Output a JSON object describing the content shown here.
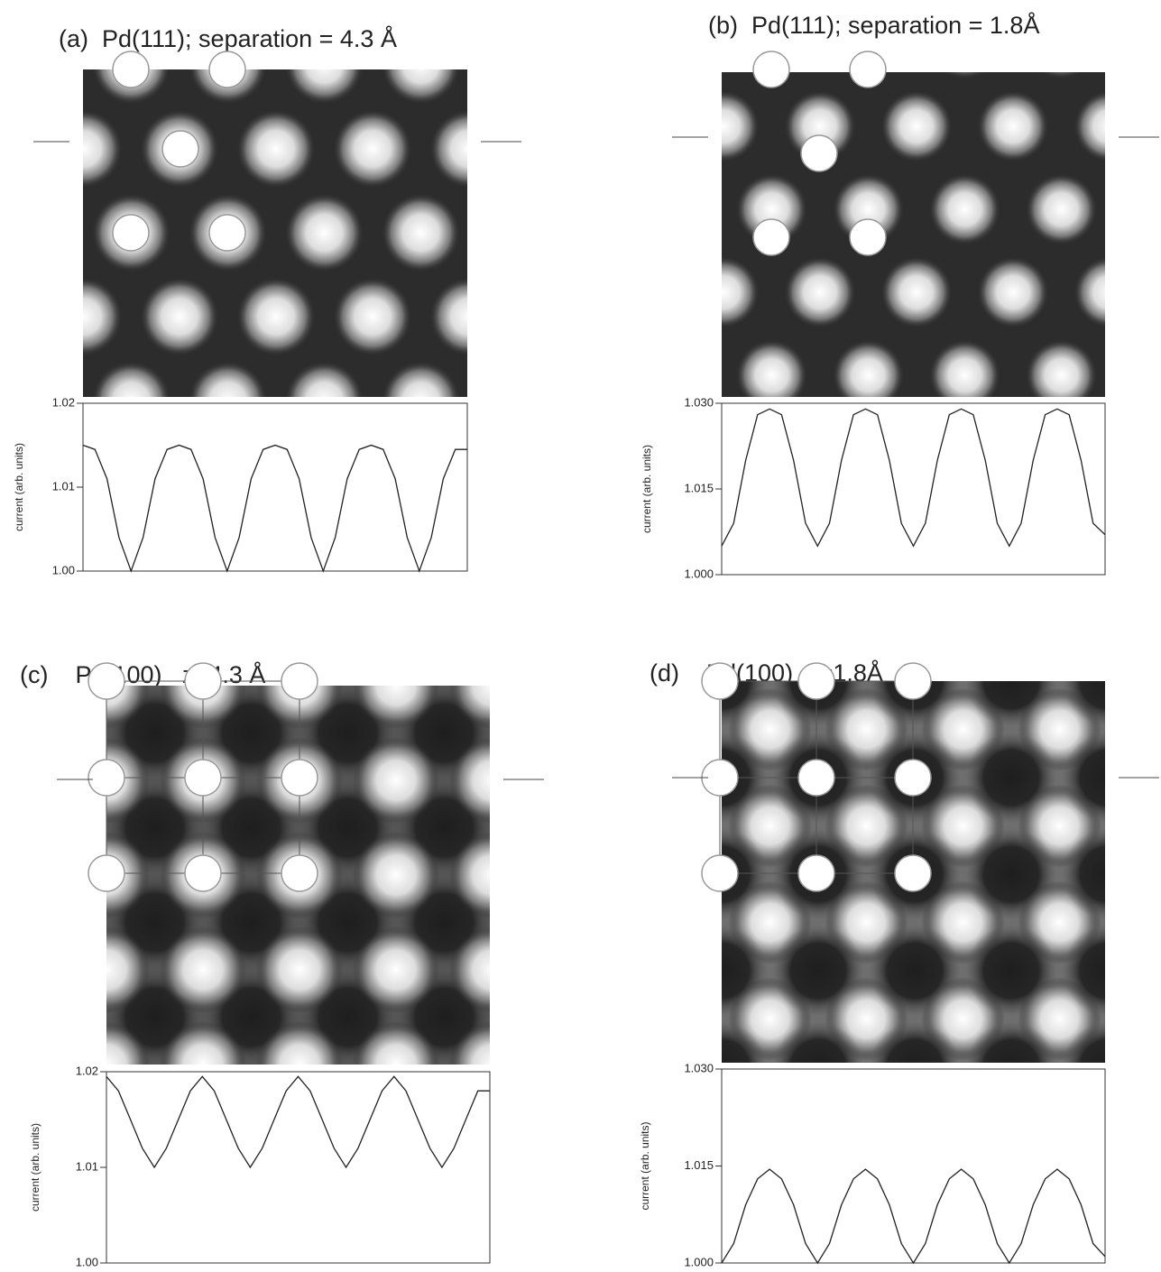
{
  "chart_data": [
    {
      "type": "line",
      "title": "(a)  Pd(111); separation = 4.3 Å",
      "y_label": "current (arb. units)",
      "ylim": [
        1.0,
        1.02
      ],
      "yticks": [
        {
          "value": 1.0,
          "label": "1.00"
        },
        1.01,
        1.02
      ],
      "color": "#222222",
      "values": [
        1.015,
        1.0145,
        1.011,
        1.004,
        1.0,
        1.004,
        1.011,
        1.0145,
        1.015,
        1.0145,
        1.011,
        1.004,
        1.0,
        1.004,
        1.011,
        1.0145,
        1.015,
        1.0145,
        1.011,
        1.004,
        1.0,
        1.004,
        1.011,
        1.0145,
        1.015,
        1.0145,
        1.011,
        1.004,
        1.0,
        1.004,
        1.011,
        1.0145,
        1.0145
      ]
    },
    {
      "type": "line",
      "title": "(b)  Pd(111); separation = 1.8Å",
      "y_label": "current (arb. units)",
      "ylim": [
        1.0,
        1.03
      ],
      "yticks": [
        {
          "value": 1.0,
          "label": "1.000"
        },
        1.015,
        {
          "value": 1.03,
          "label": "1.030"
        }
      ],
      "color": "#222222",
      "values": [
        1.005,
        1.009,
        1.02,
        1.028,
        1.029,
        1.028,
        1.02,
        1.009,
        1.005,
        1.009,
        1.02,
        1.028,
        1.029,
        1.028,
        1.02,
        1.009,
        1.005,
        1.009,
        1.02,
        1.028,
        1.029,
        1.028,
        1.02,
        1.009,
        1.005,
        1.009,
        1.02,
        1.028,
        1.029,
        1.028,
        1.02,
        1.009,
        1.007
      ]
    },
    {
      "type": "line",
      "title": "(c)    Pd(100)   z=4.3 Å",
      "y_label": "current (arb. units)",
      "ylim": [
        1.0,
        1.02
      ],
      "yticks": [
        {
          "value": 1.0,
          "label": "1.00"
        },
        1.01,
        1.02
      ],
      "color": "#222222",
      "values": [
        1.0195,
        1.018,
        1.015,
        1.012,
        1.01,
        1.012,
        1.015,
        1.018,
        1.0195,
        1.018,
        1.015,
        1.012,
        1.01,
        1.012,
        1.015,
        1.018,
        1.0195,
        1.018,
        1.015,
        1.012,
        1.01,
        1.012,
        1.015,
        1.018,
        1.0195,
        1.018,
        1.015,
        1.012,
        1.01,
        1.012,
        1.015,
        1.018,
        1.018
      ]
    },
    {
      "type": "line",
      "title": "(d)    Pd(100)  z=1.8Å",
      "y_label": "current (arb. units)",
      "ylim": [
        1.0,
        1.03
      ],
      "yticks": [
        {
          "value": 1.0,
          "label": "1.000"
        },
        1.015,
        {
          "value": 1.03,
          "label": "1.030"
        }
      ],
      "color": "#222222",
      "values": [
        1.0,
        1.003,
        1.009,
        1.013,
        1.0145,
        1.013,
        1.009,
        1.003,
        1.0,
        1.003,
        1.009,
        1.013,
        1.0145,
        1.013,
        1.009,
        1.003,
        1.0,
        1.003,
        1.009,
        1.013,
        1.0145,
        1.013,
        1.009,
        1.003,
        1.0,
        1.003,
        1.009,
        1.013,
        1.0145,
        1.013,
        1.009,
        1.003,
        1.001
      ]
    }
  ]
}
